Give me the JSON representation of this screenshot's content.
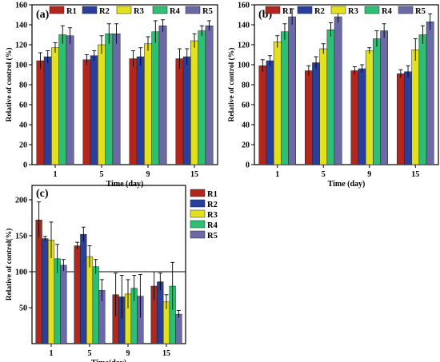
{
  "colors": {
    "R1": "#b2261d",
    "R2": "#2a3f9c",
    "R3": "#e3e11b",
    "R4": "#2fbf74",
    "R5": "#6b6aa6",
    "error": "#000000",
    "refline": "#000000"
  },
  "chart_data": [
    {
      "type": "bar",
      "panel_label": "(a)",
      "categories": [
        "1",
        "5",
        "9",
        "15"
      ],
      "series": [
        {
          "name": "R1",
          "values": [
            104,
            105,
            106,
            106
          ],
          "errors": [
            8,
            5,
            8,
            10
          ]
        },
        {
          "name": "R2",
          "values": [
            108,
            109,
            108,
            108
          ],
          "errors": [
            6,
            5,
            9,
            8
          ]
        },
        {
          "name": "R3",
          "values": [
            117,
            120,
            121,
            124
          ],
          "errors": [
            5,
            9,
            7,
            7
          ]
        },
        {
          "name": "R4",
          "values": [
            130,
            131,
            133,
            134
          ],
          "errors": [
            9,
            10,
            11,
            5
          ]
        },
        {
          "name": "R5",
          "values": [
            129,
            131,
            139,
            139
          ],
          "errors": [
            8,
            10,
            6,
            5
          ]
        }
      ],
      "xlabel": "Time (day)",
      "ylabel": "Relative of control (%)",
      "ylim": [
        0,
        160
      ],
      "yticks": [
        0,
        20,
        40,
        60,
        80,
        100,
        120,
        140,
        160
      ],
      "legend": "top"
    },
    {
      "type": "bar",
      "panel_label": "(b)",
      "categories": [
        "1",
        "5",
        "9",
        "15"
      ],
      "series": [
        {
          "name": "R1",
          "values": [
            99,
            94,
            94,
            91
          ],
          "errors": [
            6,
            5,
            4,
            4
          ]
        },
        {
          "name": "R2",
          "values": [
            104,
            102,
            96,
            93
          ],
          "errors": [
            5,
            6,
            4,
            6
          ]
        },
        {
          "name": "R3",
          "values": [
            123,
            116,
            114,
            115
          ],
          "errors": [
            6,
            5,
            3,
            11
          ]
        },
        {
          "name": "R4",
          "values": [
            133,
            135,
            126,
            130
          ],
          "errors": [
            8,
            7,
            8,
            9
          ]
        },
        {
          "name": "R5",
          "values": [
            148,
            148,
            134,
            143
          ],
          "errors": [
            8,
            6,
            7,
            8
          ]
        }
      ],
      "xlabel": "Time (day)",
      "ylabel": "Relative of control (%)",
      "ylim": [
        0,
        160
      ],
      "yticks": [
        0,
        20,
        40,
        60,
        80,
        100,
        120,
        140,
        160
      ],
      "legend": "top"
    },
    {
      "type": "bar",
      "panel_label": "(c)",
      "categories": [
        "1",
        "5",
        "9",
        "15"
      ],
      "series": [
        {
          "name": "R1",
          "values": [
            172,
            136,
            68,
            80
          ],
          "errors": [
            25,
            5,
            30,
            20
          ]
        },
        {
          "name": "R2",
          "values": [
            146,
            152,
            65,
            86
          ],
          "errors": [
            3,
            10,
            30,
            12
          ]
        },
        {
          "name": "R3",
          "values": [
            144,
            121,
            69,
            58
          ],
          "errors": [
            25,
            15,
            20,
            10
          ]
        },
        {
          "name": "R4",
          "values": [
            118,
            107,
            77,
            80
          ],
          "errors": [
            20,
            10,
            18,
            33
          ]
        },
        {
          "name": "R5",
          "values": [
            109,
            74,
            66,
            41
          ],
          "errors": [
            8,
            15,
            30,
            5
          ]
        }
      ],
      "xlabel": "Time(day)",
      "ylabel": "Relative of control(%)",
      "ylim": [
        0,
        220
      ],
      "yticks": [
        50,
        100,
        150,
        200
      ],
      "reference_line": 100,
      "legend": "right"
    }
  ]
}
